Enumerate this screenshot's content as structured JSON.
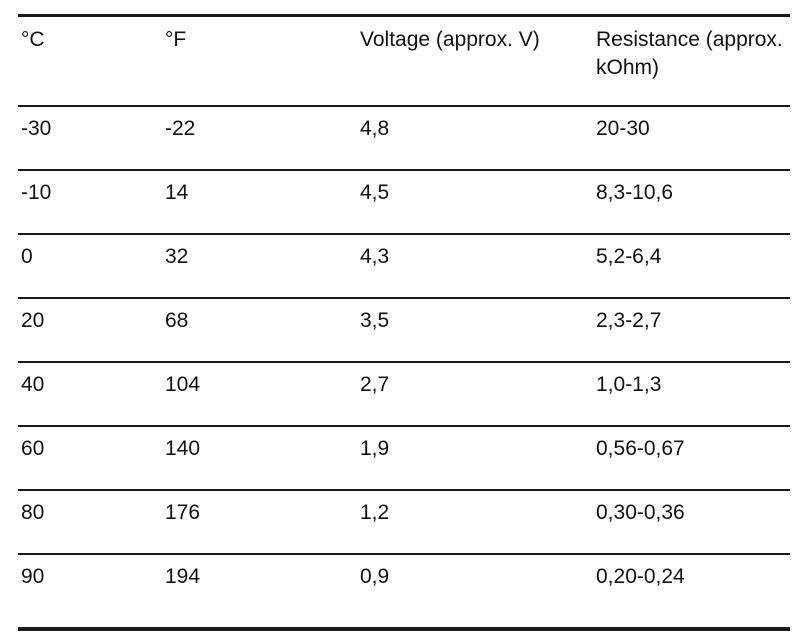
{
  "table": {
    "headers": [
      "°C",
      "°F",
      "Voltage (approx. V)",
      "Resistance (approx. kOhm)"
    ],
    "rows": [
      [
        "-30",
        "-22",
        "4,8",
        "20-30"
      ],
      [
        "-10",
        "14",
        "4,5",
        "8,3-10,6"
      ],
      [
        "0",
        "32",
        "4,3",
        "5,2-6,4"
      ],
      [
        "20",
        "68",
        "3,5",
        "2,3-2,7"
      ],
      [
        "40",
        "104",
        "2,7",
        "1,0-1,3"
      ],
      [
        "60",
        "140",
        "1,9",
        "0,56-0,67"
      ],
      [
        "80",
        "176",
        "1,2",
        "0,30-0,36"
      ],
      [
        "90",
        "194",
        "0,9",
        "0,20-0,24"
      ]
    ]
  }
}
